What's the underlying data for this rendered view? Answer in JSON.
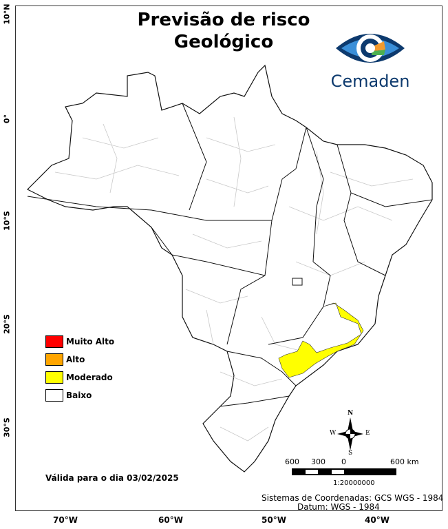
{
  "title_line1": "Previsão de risco",
  "title_line2": "Geológico",
  "logo": {
    "name": "Cemaden",
    "colors": [
      "#0d3a6e",
      "#3a8fd9",
      "#f29a2e",
      "#4caf50"
    ]
  },
  "lat_labels": [
    "10°N",
    "0°",
    "10°S",
    "20°S",
    "30°S"
  ],
  "lon_labels": [
    "70°W",
    "60°W",
    "50°W",
    "40°W"
  ],
  "legend": [
    {
      "label": "Muito Alto",
      "color": "#ff0000"
    },
    {
      "label": "Alto",
      "color": "#ffa500"
    },
    {
      "label": "Moderado",
      "color": "#ffff00"
    },
    {
      "label": "Baixo",
      "color": "#ffffff"
    }
  ],
  "validity": "Válida para o dia 03/02/2025",
  "compass": {
    "n": "N",
    "s": "S",
    "e": "E",
    "w": "W"
  },
  "scale": {
    "labels": [
      "600",
      "300",
      "0",
      "600 km"
    ],
    "ratio": "1:20000000"
  },
  "crs": "Sistemas de Coordenadas: GCS WGS - 1984",
  "datum": "Datum: WGS - 1984"
}
